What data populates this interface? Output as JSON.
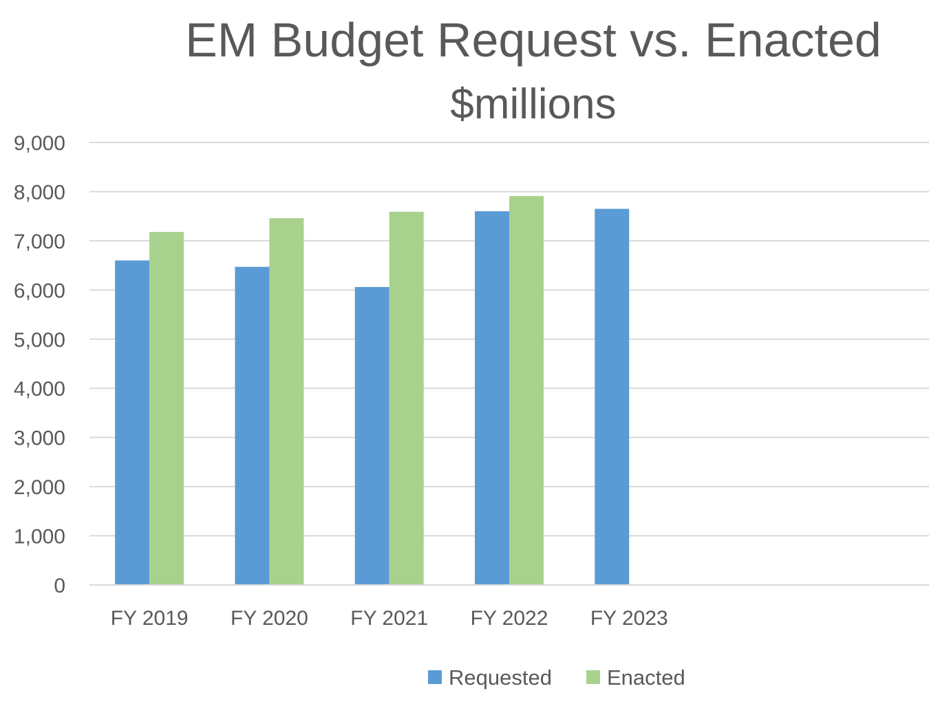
{
  "chart_data": {
    "type": "bar",
    "title": "EM Budget Request vs. Enacted",
    "subtitle": "$millions",
    "categories": [
      "FY 2019",
      "FY 2020",
      "FY 2021",
      "FY 2022",
      "FY 2023",
      "",
      ""
    ],
    "series": [
      {
        "name": "Requested",
        "color": "#5B9BD5",
        "values": [
          6600,
          6470,
          6060,
          7600,
          7650,
          null,
          null
        ]
      },
      {
        "name": "Enacted",
        "color": "#A9D18E",
        "values": [
          7180,
          7460,
          7590,
          7910,
          null,
          null,
          null
        ]
      }
    ],
    "ylim": [
      0,
      9000
    ],
    "yticks": [
      "0",
      "1,000",
      "2,000",
      "3,000",
      "4,000",
      "5,000",
      "6,000",
      "7,000",
      "8,000",
      "9,000"
    ],
    "grid": true,
    "legend_position": "bottom"
  }
}
